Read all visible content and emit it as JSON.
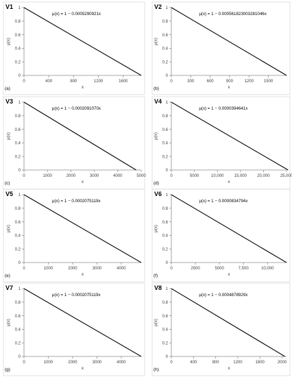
{
  "chart_data": [
    {
      "type": "line",
      "panel_label": "V1",
      "sub_label": "(a)",
      "equation": "μ(x) = 1 − 0.0005290921x",
      "xlabel": "x",
      "ylabel": "μ(x)",
      "xlim": [
        0,
        1890
      ],
      "ylim": [
        0,
        1
      ],
      "xticks": [
        0,
        400,
        800,
        1200,
        1600
      ],
      "xtick_labels": [
        "0",
        "400",
        "800",
        "1200",
        "1600"
      ],
      "yticks": [
        0,
        0.2,
        0.4,
        0.6,
        0.8,
        1
      ],
      "ytick_labels": [
        "0",
        "0.2",
        "0.4",
        "0.6",
        "0.8",
        "1"
      ],
      "series": [
        {
          "x": [
            0,
            1890
          ],
          "y": [
            1,
            0
          ]
        }
      ]
    },
    {
      "type": "line",
      "panel_label": "V2",
      "sub_label": "(b)",
      "equation": "μ(x) = 1 − 0.000561823003281046x",
      "xlabel": "x",
      "ylabel": "μ(x)",
      "xlim": [
        0,
        1780
      ],
      "ylim": [
        0,
        1
      ],
      "xticks": [
        0,
        300,
        600,
        900,
        1200,
        1500
      ],
      "xtick_labels": [
        "0",
        "300",
        "600",
        "900",
        "1200",
        "1500"
      ],
      "yticks": [
        0,
        0.2,
        0.4,
        0.6,
        0.8,
        1
      ],
      "ytick_labels": [
        "0",
        "0.2",
        "0.4",
        "0.6",
        "0.8",
        "1"
      ],
      "series": [
        {
          "x": [
            0,
            1780
          ],
          "y": [
            1,
            0
          ]
        }
      ]
    },
    {
      "type": "line",
      "panel_label": "V3",
      "sub_label": "(c)",
      "equation": "μ(x) = 1 − 0.0002091070x",
      "xlabel": "x",
      "ylabel": "μ(x)",
      "xlim": [
        0,
        5000
      ],
      "ylim": [
        0,
        1
      ],
      "xticks": [
        0,
        1000,
        2000,
        3000,
        4000,
        5000
      ],
      "xtick_labels": [
        "0",
        "1000",
        "2000",
        "3000",
        "4000",
        "5000"
      ],
      "yticks": [
        0,
        0.2,
        0.4,
        0.6,
        0.8,
        1
      ],
      "ytick_labels": [
        "0",
        "0.2",
        "0.4",
        "0.6",
        "0.8",
        "1"
      ],
      "series": [
        {
          "x": [
            0,
            4782
          ],
          "y": [
            1,
            0
          ]
        }
      ]
    },
    {
      "type": "line",
      "panel_label": "V4",
      "sub_label": "(d)",
      "equation": "μ(x) = 1 − 0.0000394641x",
      "xlabel": "x",
      "ylabel": "μ(x)",
      "xlim": [
        0,
        25000
      ],
      "ylim": [
        0,
        1
      ],
      "xticks": [
        0,
        5000,
        10000,
        15000,
        20000,
        25000
      ],
      "xtick_labels": [
        "0",
        "5000",
        "10,000",
        "15,000",
        "20,000",
        "25,000"
      ],
      "yticks": [
        0,
        0.2,
        0.4,
        0.6,
        0.8,
        1
      ],
      "ytick_labels": [
        "0",
        "0.2",
        "0.4",
        "0.6",
        "0.8",
        "1"
      ],
      "series": [
        {
          "x": [
            0,
            25340
          ],
          "y": [
            1,
            0
          ]
        }
      ]
    },
    {
      "type": "line",
      "panel_label": "V5",
      "sub_label": "(e)",
      "equation": "μ(x) = 1 − 0.0002075119x",
      "xlabel": "x",
      "ylabel": "μ(x)",
      "xlim": [
        0,
        4819
      ],
      "ylim": [
        0,
        1
      ],
      "xticks": [
        0,
        1000,
        2000,
        3000,
        4000
      ],
      "xtick_labels": [
        "0",
        "1000",
        "2000",
        "3000",
        "4000"
      ],
      "yticks": [
        0,
        0.2,
        0.4,
        0.6,
        0.8,
        1
      ],
      "ytick_labels": [
        "0",
        "0.2",
        "0.4",
        "0.6",
        "0.8",
        "1"
      ],
      "series": [
        {
          "x": [
            0,
            4819
          ],
          "y": [
            1,
            0
          ]
        }
      ]
    },
    {
      "type": "line",
      "panel_label": "V6",
      "sub_label": "(f)",
      "equation": "μ(x) = 1 − 0.0000834794x",
      "xlabel": "x",
      "ylabel": "μ(x)",
      "xlim": [
        0,
        11979
      ],
      "ylim": [
        0,
        1
      ],
      "xticks": [
        0,
        2500,
        5000,
        7500,
        10000
      ],
      "xtick_labels": [
        "0",
        "2500",
        "5000",
        "7,500",
        "10,000"
      ],
      "yticks": [
        0,
        0.2,
        0.4,
        0.6,
        0.8,
        1
      ],
      "ytick_labels": [
        "0",
        "0.2",
        "0.4",
        "0.6",
        "0.8",
        "1"
      ],
      "series": [
        {
          "x": [
            0,
            11979
          ],
          "y": [
            1,
            0
          ]
        }
      ]
    },
    {
      "type": "line",
      "panel_label": "V7",
      "sub_label": "(g)",
      "equation": "μ(x) = 1 − 0.0002075119x",
      "xlabel": "x",
      "ylabel": "μ(x)",
      "xlim": [
        0,
        4819
      ],
      "ylim": [
        0,
        1
      ],
      "xticks": [
        0,
        1000,
        2000,
        3000,
        4000
      ],
      "xtick_labels": [
        "0",
        "1000",
        "2000",
        "3000",
        "4000"
      ],
      "yticks": [
        0,
        0.2,
        0.4,
        0.6,
        0.8,
        1
      ],
      "ytick_labels": [
        "0",
        "0.2",
        "0.4",
        "0.6",
        "0.8",
        "1"
      ],
      "series": [
        {
          "x": [
            0,
            4819
          ],
          "y": [
            1,
            0
          ]
        }
      ]
    },
    {
      "type": "line",
      "panel_label": "V8",
      "sub_label": "(h)",
      "equation": "μ(x) = 1 − 0.0004878929x",
      "xlabel": "x",
      "ylabel": "μ(x)",
      "xlim": [
        0,
        2080
      ],
      "ylim": [
        0,
        1
      ],
      "xticks": [
        0,
        400,
        800,
        1200,
        1600,
        2000
      ],
      "xtick_labels": [
        "0",
        "400",
        "800",
        "1200",
        "1600",
        "2000"
      ],
      "yticks": [
        0,
        0.2,
        0.4,
        0.6,
        0.8,
        1
      ],
      "ytick_labels": [
        "0",
        "0.2",
        "0.4",
        "0.6",
        "0.8",
        "1"
      ],
      "series": [
        {
          "x": [
            0,
            2050
          ],
          "y": [
            1,
            0
          ]
        }
      ]
    }
  ]
}
